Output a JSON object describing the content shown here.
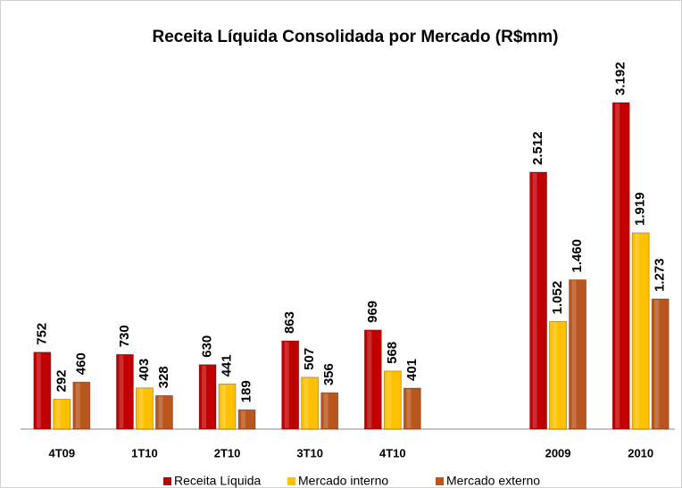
{
  "chart_data": {
    "type": "bar",
    "title": "Receita Líquida Consolidada por Mercado (R$mm)",
    "categories": [
      "4T09",
      "1T10",
      "2T10",
      "3T10",
      "4T10",
      null,
      "2009",
      "2010"
    ],
    "series": [
      {
        "name": "Receita Líquida",
        "color": "#c00000",
        "values": [
          752,
          730,
          630,
          863,
          969,
          null,
          2512,
          3192
        ],
        "value_labels": [
          "752",
          "730",
          "630",
          "863",
          "969",
          null,
          "2.512",
          "3.192"
        ]
      },
      {
        "name": "Mercado interno",
        "color": "#ffc000",
        "values": [
          292,
          403,
          441,
          507,
          568,
          null,
          1052,
          1919
        ],
        "value_labels": [
          "292",
          "403",
          "441",
          "507",
          "568",
          null,
          "1.052",
          "1.919"
        ]
      },
      {
        "name": "Mercado externo",
        "color": "#b8561e",
        "values": [
          460,
          328,
          189,
          356,
          401,
          null,
          1460,
          1273
        ],
        "value_labels": [
          "460",
          "328",
          "189",
          "356",
          "401",
          null,
          "1.460",
          "1.273"
        ]
      }
    ],
    "legend": "bottom"
  }
}
